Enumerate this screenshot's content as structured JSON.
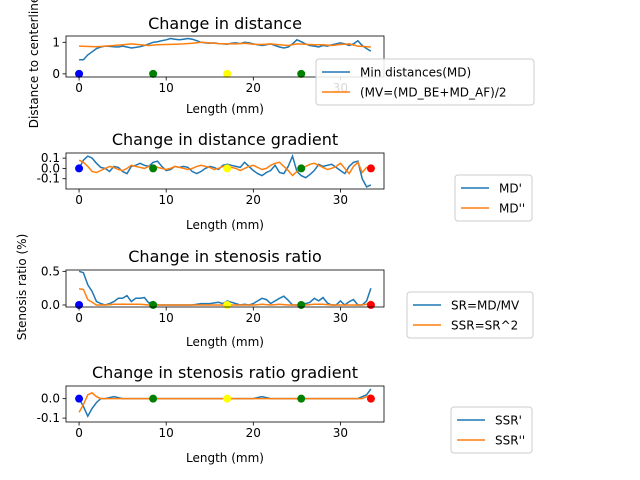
{
  "chart_data": [
    {
      "type": "line",
      "title": "Change in distance",
      "xlabel": "Length (mm)",
      "ylabel": "Distance to centerline",
      "xlim": [
        -1.5,
        35
      ],
      "ylim": [
        -0.1,
        1.2
      ],
      "xticks": [
        0,
        10,
        20,
        30
      ],
      "yticks": [
        0,
        1
      ],
      "grid": false,
      "legend_position": "right",
      "series": [
        {
          "name": "Min distances(MD)",
          "color": "#1f77b4",
          "x": [
            0,
            0.5,
            1,
            1.5,
            2,
            2.5,
            3,
            3.5,
            4,
            4.5,
            5,
            5.5,
            6,
            6.5,
            7,
            7.5,
            8,
            8.5,
            9,
            9.5,
            10,
            10.5,
            11,
            11.5,
            12,
            12.5,
            13,
            13.5,
            14,
            14.5,
            15,
            15.5,
            16,
            16.5,
            17,
            17.5,
            18,
            18.5,
            19,
            19.5,
            20,
            20.5,
            21,
            21.5,
            22,
            22.5,
            23,
            23.5,
            24,
            24.5,
            25,
            25.5,
            26,
            26.5,
            27,
            27.5,
            28,
            28.5,
            29,
            29.5,
            30,
            30.5,
            31,
            31.5,
            32,
            32.5,
            33,
            33.5
          ],
          "y": [
            0.45,
            0.45,
            0.6,
            0.7,
            0.8,
            0.85,
            0.88,
            0.87,
            0.86,
            0.85,
            0.88,
            0.85,
            0.82,
            0.84,
            0.86,
            0.9,
            0.95,
            1.0,
            1.02,
            1.05,
            1.08,
            1.12,
            1.1,
            1.08,
            1.1,
            1.12,
            1.1,
            1.05,
            1.0,
            0.98,
            0.97,
            0.98,
            0.96,
            0.95,
            0.94,
            0.97,
            0.98,
            0.96,
            1.0,
            0.98,
            0.95,
            0.92,
            0.9,
            0.92,
            0.95,
            0.9,
            0.85,
            0.82,
            0.85,
            0.95,
            1.08,
            1.02,
            0.95,
            0.9,
            0.88,
            0.85,
            0.9,
            0.88,
            0.92,
            0.95,
            0.98,
            0.95,
            0.9,
            0.95,
            1.05,
            0.9,
            0.8,
            0.72
          ]
        },
        {
          "name": "(MV=(MD_BE+MD_AF)/2",
          "color": "#ff7f0e",
          "x": [
            0,
            2,
            3,
            4,
            5,
            6,
            7,
            8,
            9,
            10,
            11,
            12,
            13,
            14,
            15,
            16,
            17,
            18,
            19,
            20,
            21,
            22,
            23,
            24,
            25,
            26,
            27,
            28,
            29,
            30,
            31,
            32,
            33,
            33.5
          ],
          "y": [
            0.88,
            0.86,
            0.88,
            0.9,
            0.92,
            0.95,
            0.92,
            0.9,
            0.92,
            0.93,
            0.94,
            0.95,
            0.97,
            1.0,
            0.98,
            0.96,
            0.95,
            0.95,
            0.97,
            0.94,
            0.93,
            0.95,
            0.92,
            0.9,
            0.95,
            0.94,
            0.92,
            0.92,
            0.9,
            0.93,
            0.95,
            0.88,
            0.86,
            0.85
          ]
        }
      ],
      "markers": [
        {
          "x": 0,
          "y": 0,
          "color": "#0000ff"
        },
        {
          "x": 8.5,
          "y": 0,
          "color": "#008000"
        },
        {
          "x": 17,
          "y": 0,
          "color": "#ffff00"
        },
        {
          "x": 25.5,
          "y": 0,
          "color": "#008000"
        }
      ]
    },
    {
      "type": "line",
      "title": "Change in distance gradient",
      "xlabel": "Length (mm)",
      "ylabel": "",
      "xlim": [
        -1.5,
        35
      ],
      "ylim": [
        -0.2,
        0.15
      ],
      "xticks": [
        0,
        10,
        20,
        30
      ],
      "yticks": [
        0.1,
        0.0,
        -0.1
      ],
      "yticklabels": [
        "0.1",
        "0.0",
        "-0.1"
      ],
      "grid": false,
      "legend_position": "right",
      "series": [
        {
          "name": "MD'",
          "color": "#1f77b4",
          "x": [
            0,
            0.5,
            1,
            1.5,
            2,
            2.5,
            3,
            3.5,
            4,
            4.5,
            5,
            5.5,
            6,
            6.5,
            7,
            7.5,
            8,
            8.5,
            9,
            9.5,
            10,
            10.5,
            11,
            11.5,
            12,
            12.5,
            13,
            13.5,
            14,
            14.5,
            15,
            15.5,
            16,
            16.5,
            17,
            17.5,
            18,
            18.5,
            19,
            19.5,
            20,
            20.5,
            21,
            21.5,
            22,
            22.5,
            23,
            23.5,
            24,
            24.5,
            25,
            25.5,
            26,
            26.5,
            27,
            27.5,
            28,
            28.5,
            29,
            29.5,
            30,
            30.5,
            31,
            31.5,
            32,
            32.5,
            33,
            33.5
          ],
          "y": [
            0.0,
            0.08,
            0.12,
            0.1,
            0.05,
            0.01,
            0.0,
            -0.03,
            0.02,
            0.01,
            -0.03,
            -0.05,
            0.02,
            0.03,
            0.05,
            0.03,
            0.02,
            0.06,
            0.07,
            0.02,
            -0.02,
            -0.01,
            0.02,
            0.01,
            0.02,
            0.01,
            -0.03,
            -0.05,
            -0.03,
            0.0,
            0.02,
            0.01,
            -0.01,
            0.03,
            0.04,
            0.03,
            0.02,
            0.01,
            0.06,
            0.02,
            -0.02,
            -0.05,
            -0.07,
            -0.04,
            -0.02,
            0.03,
            -0.04,
            -0.05,
            0.02,
            0.12,
            -0.03,
            -0.07,
            -0.09,
            -0.06,
            -0.02,
            0.04,
            0.02,
            0.03,
            0.04,
            0.01,
            -0.02,
            -0.05,
            0.02,
            0.06,
            0.07,
            -0.1,
            -0.18,
            -0.16
          ]
        },
        {
          "name": "MD''",
          "color": "#ff7f0e",
          "x": [
            0,
            0.5,
            1,
            1.5,
            2,
            2.5,
            3,
            3.5,
            4,
            4.5,
            5,
            5.5,
            6,
            6.5,
            7,
            7.5,
            8,
            8.5,
            9,
            9.5,
            10,
            10.5,
            11,
            11.5,
            12,
            12.5,
            13,
            13.5,
            14,
            14.5,
            15,
            15.5,
            16,
            16.5,
            17,
            17.5,
            18,
            18.5,
            19,
            19.5,
            20,
            20.5,
            21,
            21.5,
            22,
            22.5,
            23,
            23.5,
            24,
            24.5,
            25,
            25.5,
            26,
            26.5,
            27,
            27.5,
            28,
            28.5,
            29,
            29.5,
            30,
            30.5,
            31,
            31.5,
            32,
            32.5,
            33,
            33.5
          ],
          "y": [
            0.08,
            0.06,
            0.02,
            -0.03,
            -0.04,
            -0.02,
            0.0,
            0.02,
            0.01,
            -0.01,
            -0.02,
            0.0,
            0.03,
            0.02,
            0.01,
            0.0,
            0.02,
            0.03,
            0.01,
            0.0,
            -0.01,
            0.0,
            0.02,
            0.01,
            0.0,
            -0.01,
            0.0,
            0.02,
            0.03,
            0.02,
            0.01,
            -0.01,
            0.0,
            0.02,
            0.03,
            0.01,
            0.0,
            -0.02,
            0.0,
            0.02,
            0.03,
            0.01,
            -0.01,
            0.0,
            0.03,
            0.05,
            0.06,
            0.02,
            -0.02,
            -0.07,
            -0.03,
            0.0,
            0.02,
            0.04,
            0.05,
            0.03,
            0.01,
            -0.01,
            0.0,
            0.02,
            0.05,
            0.0,
            -0.05,
            0.02,
            0.06,
            -0.04,
            0.01,
            0.0
          ]
        }
      ],
      "markers": [
        {
          "x": 0,
          "y": 0,
          "color": "#0000ff"
        },
        {
          "x": 8.5,
          "y": 0,
          "color": "#008000"
        },
        {
          "x": 17,
          "y": 0,
          "color": "#ffff00"
        },
        {
          "x": 25.5,
          "y": 0,
          "color": "#008000"
        },
        {
          "x": 33.5,
          "y": 0,
          "color": "#ff0000"
        }
      ]
    },
    {
      "type": "line",
      "title": "Change in stenosis ratio",
      "xlabel": "Length (mm)",
      "ylabel": "Stenosis ratio (%)",
      "xlim": [
        -1.5,
        35
      ],
      "ylim": [
        -0.03,
        0.52
      ],
      "xticks": [
        0,
        10,
        20,
        30
      ],
      "yticks": [
        0.0,
        0.5
      ],
      "yticklabels": [
        "0.0",
        "0.5"
      ],
      "grid": false,
      "legend_position": "right",
      "series": [
        {
          "name": "SR=MD/MV",
          "color": "#1f77b4",
          "x": [
            0,
            0.5,
            1,
            1.5,
            2,
            2.5,
            3,
            3.5,
            4,
            4.5,
            5,
            5.5,
            6,
            6.5,
            7,
            7.5,
            8,
            8.5,
            9,
            9.5,
            10,
            11,
            12,
            13,
            14,
            15,
            16,
            16.5,
            17,
            17.5,
            18,
            18.5,
            19,
            19.5,
            20,
            20.5,
            21,
            21.5,
            22,
            22.5,
            23,
            23.5,
            24,
            24.5,
            25,
            25.5,
            26,
            26.5,
            27,
            27.5,
            28,
            28.5,
            29,
            29.5,
            30,
            30.5,
            31,
            31.5,
            32,
            32.5,
            33,
            33.5
          ],
          "y": [
            0.5,
            0.48,
            0.3,
            0.2,
            0.05,
            0.02,
            0.0,
            0.02,
            0.05,
            0.1,
            0.1,
            0.14,
            0.05,
            0.1,
            0.1,
            0.11,
            0.03,
            0.05,
            0.0,
            0.0,
            0.0,
            0.0,
            0.0,
            0.0,
            0.02,
            0.02,
            0.04,
            0.02,
            0.06,
            0.04,
            0.02,
            0.0,
            0.01,
            0.0,
            0.02,
            0.06,
            0.1,
            0.08,
            0.02,
            0.06,
            0.1,
            0.13,
            0.07,
            0.0,
            0.0,
            0.03,
            0.02,
            0.04,
            0.1,
            0.06,
            0.11,
            0.03,
            0.0,
            0.0,
            0.06,
            0.0,
            0.05,
            0.08,
            0.0,
            0.0,
            0.06,
            0.25
          ]
        },
        {
          "name": "SSR=SR^2",
          "color": "#ff7f0e",
          "x": [
            0,
            0.5,
            1,
            1.5,
            2,
            2.5,
            3,
            4,
            5,
            6,
            7,
            8,
            9,
            10,
            11,
            12,
            13,
            14,
            15,
            16,
            17,
            18,
            19,
            20,
            21,
            22,
            23,
            24,
            25,
            26,
            27,
            28,
            29,
            30,
            31,
            32,
            32.5,
            33,
            33.5
          ],
          "y": [
            0.24,
            0.23,
            0.08,
            0.04,
            0.0,
            0.0,
            0.0,
            0.01,
            0.01,
            0.01,
            0.01,
            0.0,
            0.0,
            0.0,
            0.0,
            0.0,
            0.0,
            0.0,
            0.0,
            0.0,
            0.0,
            0.0,
            0.0,
            0.0,
            0.01,
            0.0,
            0.01,
            0.0,
            0.0,
            0.0,
            0.01,
            0.01,
            0.0,
            0.0,
            0.0,
            0.0,
            0.0,
            0.01,
            0.06
          ]
        }
      ],
      "markers": [
        {
          "x": 0,
          "y": 0,
          "color": "#0000ff"
        },
        {
          "x": 8.5,
          "y": 0,
          "color": "#008000"
        },
        {
          "x": 17,
          "y": 0,
          "color": "#ffff00"
        },
        {
          "x": 25.5,
          "y": 0,
          "color": "#008000"
        },
        {
          "x": 33.5,
          "y": 0,
          "color": "#ff0000"
        }
      ]
    },
    {
      "type": "line",
      "title": "Change in stenosis ratio gradient",
      "xlabel": "Length (mm)",
      "ylabel": "",
      "xlim": [
        -1.5,
        35
      ],
      "ylim": [
        -0.12,
        0.065
      ],
      "xticks": [
        0,
        10,
        20,
        30
      ],
      "yticks": [
        0.0,
        -0.1
      ],
      "yticklabels": [
        "0.0",
        "-0.1"
      ],
      "grid": false,
      "legend_position": "right",
      "series": [
        {
          "name": "SSR'",
          "color": "#1f77b4",
          "x": [
            0,
            0.5,
            1,
            1.5,
            2,
            2.5,
            3,
            4,
            5,
            6,
            7,
            8,
            9,
            10,
            11,
            12,
            13,
            14,
            15,
            16,
            17,
            18,
            19,
            20,
            21,
            22,
            23,
            24,
            25,
            26,
            27,
            28,
            29,
            30,
            31,
            32,
            32.5,
            33,
            33.5
          ],
          "y": [
            0.0,
            -0.04,
            -0.09,
            -0.05,
            -0.02,
            0.0,
            0.0,
            0.01,
            0.0,
            0.0,
            0.0,
            0.0,
            0.0,
            0.0,
            0.0,
            0.0,
            0.0,
            0.0,
            0.0,
            0.0,
            0.0,
            0.0,
            0.0,
            0.0,
            0.01,
            0.0,
            0.0,
            0.0,
            0.0,
            0.0,
            0.0,
            0.0,
            0.0,
            0.0,
            0.0,
            0.0,
            0.01,
            0.02,
            0.05
          ]
        },
        {
          "name": "SSR''",
          "color": "#ff7f0e",
          "x": [
            0,
            0.5,
            1,
            1.5,
            2,
            2.5,
            3,
            4,
            5,
            6,
            7,
            8,
            9,
            10,
            11,
            12,
            13,
            14,
            15,
            16,
            17,
            18,
            19,
            20,
            21,
            22,
            23,
            24,
            25,
            26,
            27,
            28,
            29,
            30,
            31,
            32,
            32.5,
            33,
            33.5
          ],
          "y": [
            -0.07,
            -0.03,
            0.02,
            0.03,
            0.01,
            0.0,
            0.0,
            0.0,
            0.0,
            0.0,
            0.0,
            0.0,
            0.0,
            0.0,
            0.0,
            0.0,
            0.0,
            0.0,
            0.0,
            0.0,
            0.0,
            0.0,
            0.0,
            0.0,
            0.0,
            0.0,
            0.0,
            0.0,
            0.0,
            0.0,
            0.0,
            0.0,
            0.0,
            0.0,
            0.0,
            0.0,
            0.0,
            0.01,
            0.02
          ]
        }
      ],
      "markers": [
        {
          "x": 0,
          "y": 0,
          "color": "#0000ff"
        },
        {
          "x": 8.5,
          "y": 0,
          "color": "#008000"
        },
        {
          "x": 17,
          "y": 0,
          "color": "#ffff00"
        },
        {
          "x": 25.5,
          "y": 0,
          "color": "#008000"
        },
        {
          "x": 33.5,
          "y": 0,
          "color": "#ff0000"
        }
      ]
    }
  ]
}
